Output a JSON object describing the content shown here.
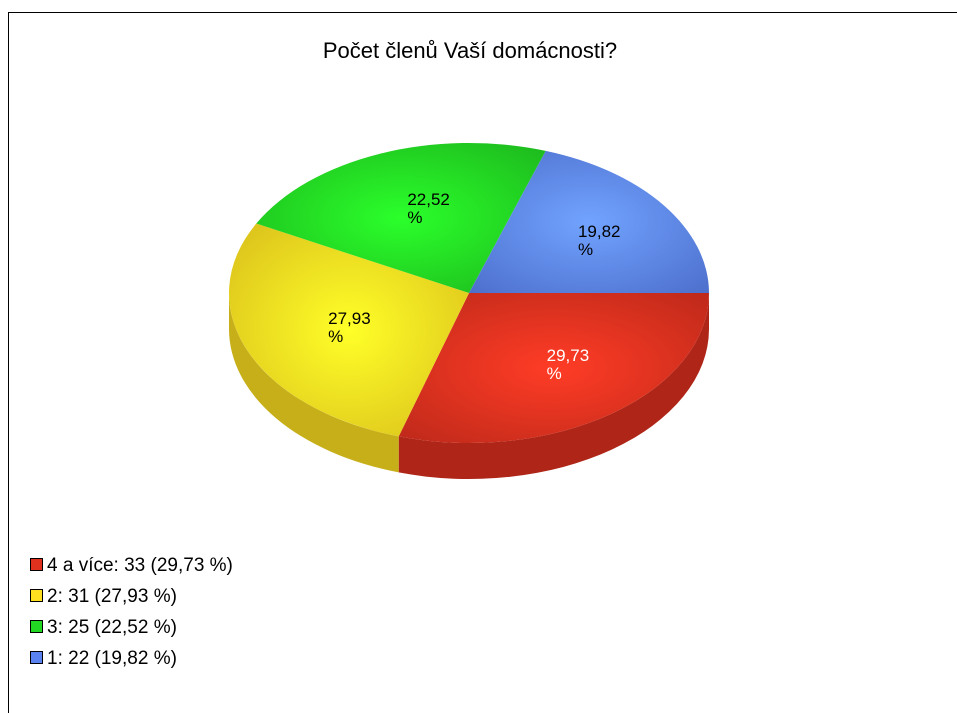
{
  "chart_data": {
    "type": "pie",
    "title": "Počet členů Vaší domácnosti?",
    "categories": [
      "4 a více: 33 (29,73 %)",
      "2: 31 (27,93 %)",
      "3: 25 (22,52 %)",
      "1: 22 (19,82 %)"
    ],
    "values": [
      29.73,
      27.93,
      22.52,
      19.82
    ],
    "value_labels": [
      "29,73 %",
      "27,93 %",
      "22,52 %",
      "19,82 %"
    ],
    "colors": [
      "#e0301e",
      "#ffe020",
      "#22d822",
      "#5a82f0"
    ]
  }
}
